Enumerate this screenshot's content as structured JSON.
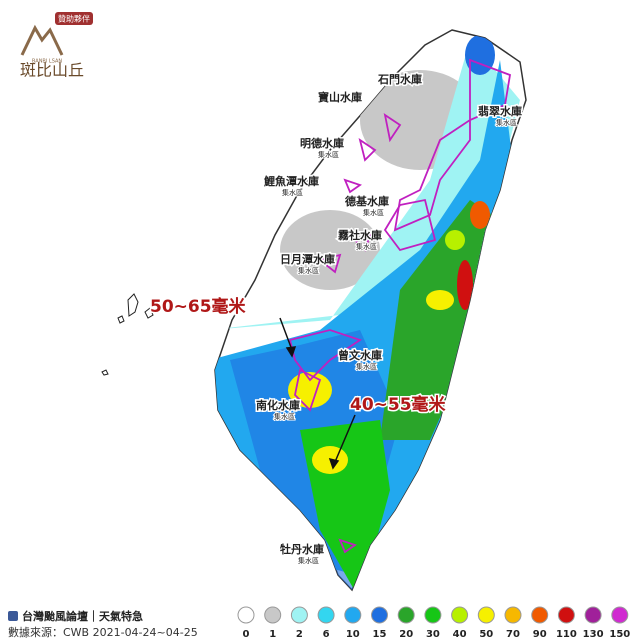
{
  "logo": {
    "badge": "贊助夥伴",
    "brand_en": "BANBI LSAN",
    "brand": "斑比山丘"
  },
  "reservoirs": [
    {
      "name": "石門水庫",
      "sub": null
    },
    {
      "name": "寶山水庫",
      "sub": null
    },
    {
      "name": "翡翠水庫",
      "sub": "集水區"
    },
    {
      "name": "明德水庫",
      "sub": "集水區"
    },
    {
      "name": "鯉魚潭水庫",
      "sub": "集水區"
    },
    {
      "name": "德基水庫",
      "sub": "集水區"
    },
    {
      "name": "霧社水庫",
      "sub": "集水區"
    },
    {
      "name": "日月潭水庫",
      "sub": "集水區"
    },
    {
      "name": "曾文水庫",
      "sub": "集水區"
    },
    {
      "name": "南化水庫",
      "sub": "集水區"
    },
    {
      "name": "牡丹水庫",
      "sub": "集水區"
    }
  ],
  "annotations": [
    "50~65毫米",
    "40~55毫米"
  ],
  "footer": {
    "title": "台灣颱風論壇｜天氣特急",
    "source": "數據來源：CWB 2021-04-24~04-25"
  },
  "legend": [
    {
      "label": 0,
      "color": "#ffffff"
    },
    {
      "label": 1,
      "color": "#c8c8c8"
    },
    {
      "label": 2,
      "color": "#9ff3f3"
    },
    {
      "label": 6,
      "color": "#33d6f0"
    },
    {
      "label": 10,
      "color": "#22a8ef"
    },
    {
      "label": 15,
      "color": "#1f6fe0"
    },
    {
      "label": 20,
      "color": "#2aa52a"
    },
    {
      "label": 30,
      "color": "#16c616"
    },
    {
      "label": 40,
      "color": "#b7f000"
    },
    {
      "label": 50,
      "color": "#f6f000"
    },
    {
      "label": 70,
      "color": "#f6b800"
    },
    {
      "label": 90,
      "color": "#f05a00"
    },
    {
      "label": 110,
      "color": "#d01010"
    },
    {
      "label": 130,
      "color": "#a0209a"
    },
    {
      "label": 150,
      "color": "#d02ad0"
    }
  ]
}
